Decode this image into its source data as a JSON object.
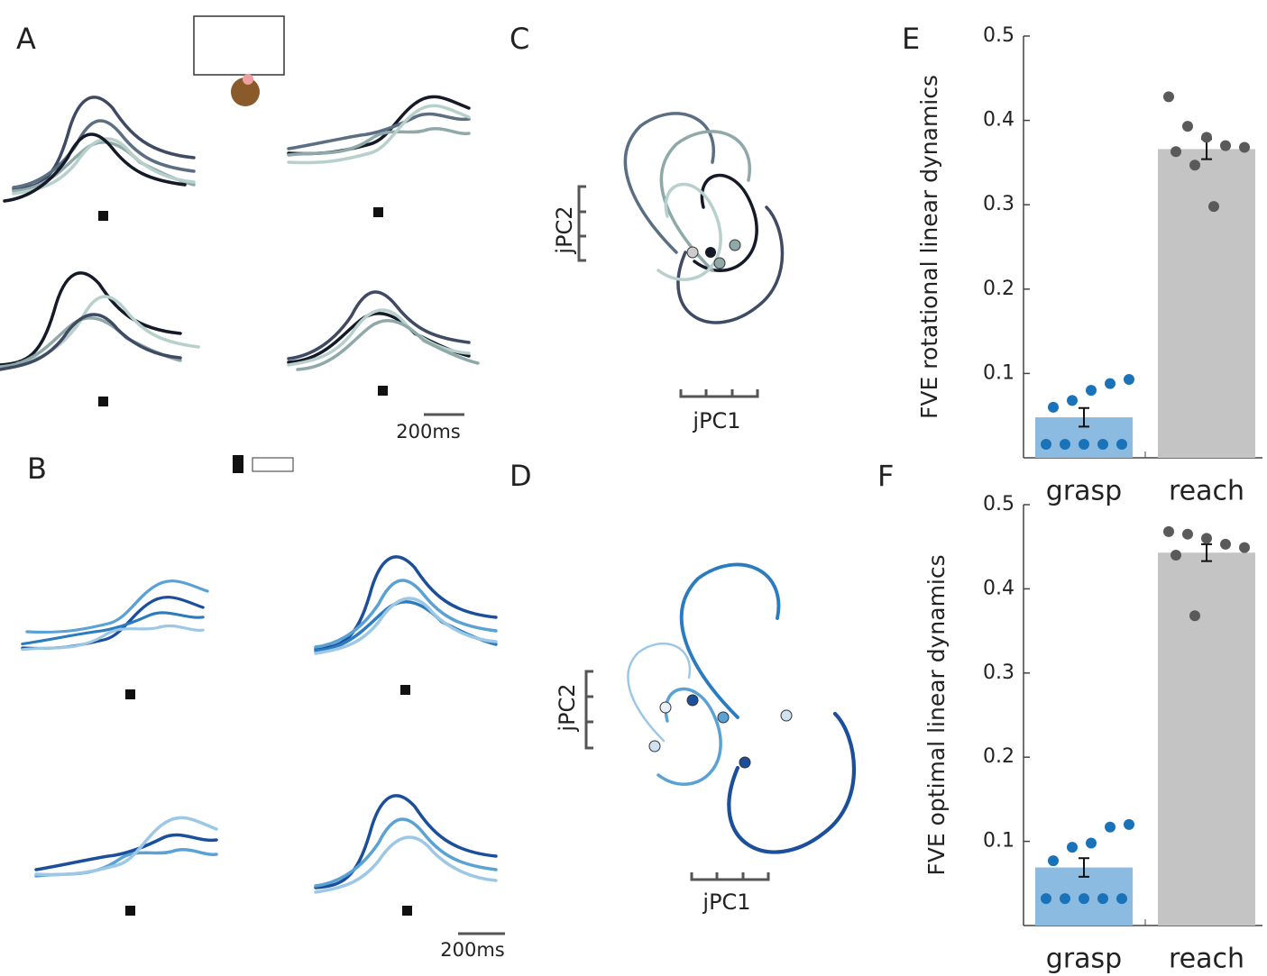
{
  "panel_labels": [
    "A",
    "B",
    "C",
    "D",
    "E",
    "F"
  ],
  "scale_labels": {
    "a_time": "200ms",
    "b_time": "200ms",
    "c_x": "jPC1",
    "c_y": "jPC2",
    "d_x": "jPC1",
    "d_y": "jPC2"
  },
  "chart_data": [
    {
      "type": "bar",
      "ylabel": "FVE rotational linear dynamics",
      "categories": [
        "grasp",
        "reach"
      ],
      "values": [
        0.048,
        0.366
      ],
      "errors": [
        0.011,
        0.012
      ],
      "colors": [
        "#8cbbe2",
        "#c4c4c4"
      ],
      "point_colors": [
        "#1a73b8",
        "#5a5a5a"
      ],
      "points": [
        [
          0.016,
          0.016,
          0.016,
          0.016,
          0.016,
          0.06,
          0.068,
          0.08,
          0.088,
          0.093
        ],
        [
          0.428,
          0.393,
          0.38,
          0.37,
          0.368,
          0.363,
          0.347,
          0.298
        ]
      ],
      "ylim": [
        0,
        0.5
      ],
      "yticks": [
        0.1,
        0.2,
        0.3,
        0.4,
        0.5
      ]
    },
    {
      "type": "bar",
      "ylabel": "FVE optimal linear dynamics",
      "categories": [
        "grasp",
        "reach"
      ],
      "values": [
        0.069,
        0.443
      ],
      "errors": [
        0.011,
        0.01
      ],
      "colors": [
        "#8cbbe2",
        "#c4c4c4"
      ],
      "point_colors": [
        "#1a73b8",
        "#5a5a5a"
      ],
      "points": [
        [
          0.032,
          0.032,
          0.032,
          0.032,
          0.032,
          0.077,
          0.093,
          0.098,
          0.117,
          0.12
        ],
        [
          0.468,
          0.465,
          0.46,
          0.453,
          0.449,
          0.44,
          0.368
        ]
      ],
      "ylim": [
        0,
        0.5
      ],
      "yticks": [
        0.1,
        0.2,
        0.3,
        0.4,
        0.5
      ]
    }
  ]
}
